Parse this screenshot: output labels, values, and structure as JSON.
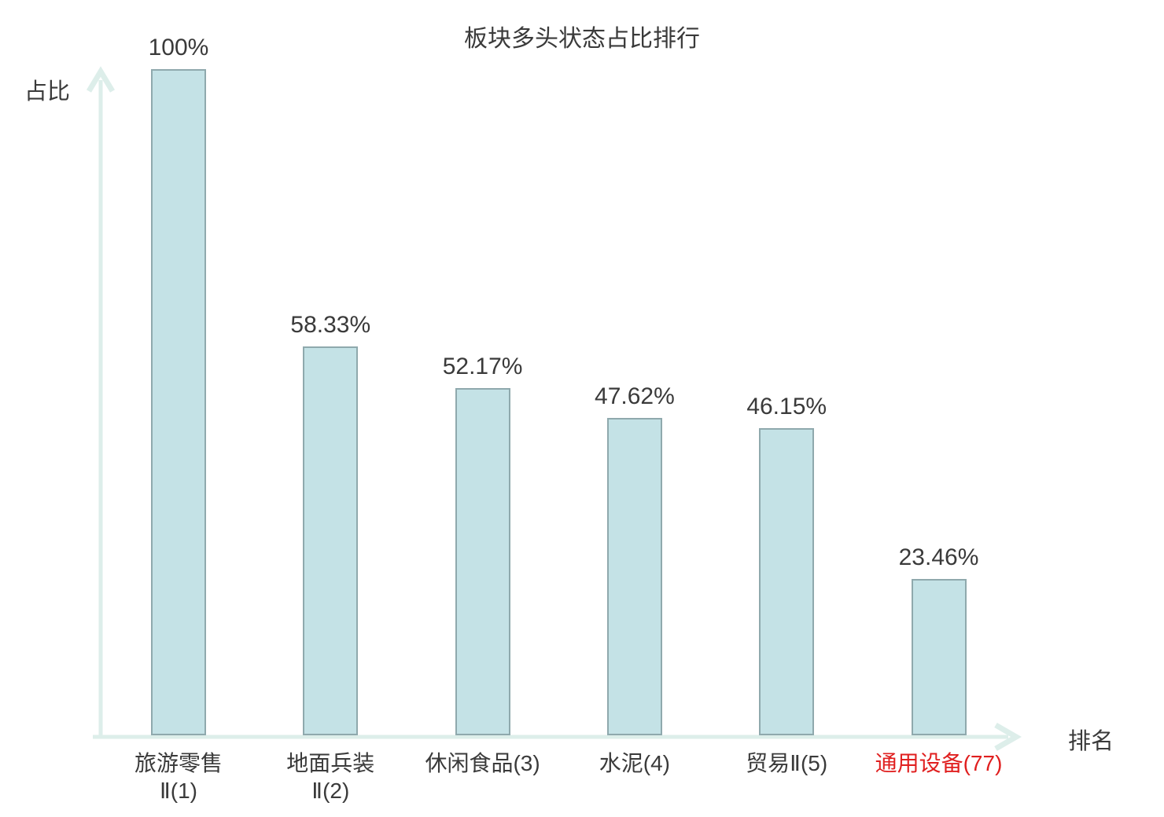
{
  "title": "板块多头状态占比排行",
  "y_axis_label": "占比",
  "x_axis_label": "排名",
  "colors": {
    "bar_fill": "#c4e2e6",
    "bar_border": "#8fa9ad",
    "axis": "#ddeeea",
    "text": "#3a3a3a",
    "highlight": "#e01f1f"
  },
  "chart_data": {
    "type": "bar",
    "title": "板块多头状态占比排行",
    "xlabel": "排名",
    "ylabel": "占比",
    "ylim": [
      0,
      100
    ],
    "grid": false,
    "legend": false,
    "categories": [
      "旅游零售Ⅱ(1)",
      "地面兵装Ⅱ(2)",
      "休闲食品(3)",
      "水泥(4)",
      "贸易Ⅱ(5)",
      "通用设备(77)"
    ],
    "category_lines": [
      [
        "旅游零售",
        "Ⅱ(1)"
      ],
      [
        "地面兵装",
        "Ⅱ(2)"
      ],
      [
        "休闲食品(3)"
      ],
      [
        "水泥(4)"
      ],
      [
        "贸易Ⅱ(5)"
      ],
      [
        "通用设备(77)"
      ]
    ],
    "values": [
      100,
      58.33,
      52.17,
      47.62,
      46.15,
      23.46
    ],
    "value_labels": [
      "100%",
      "58.33%",
      "52.17%",
      "47.62%",
      "46.15%",
      "23.46%"
    ],
    "highlighted_category_index": 5,
    "highlight_reason_color": "#e01f1f"
  }
}
